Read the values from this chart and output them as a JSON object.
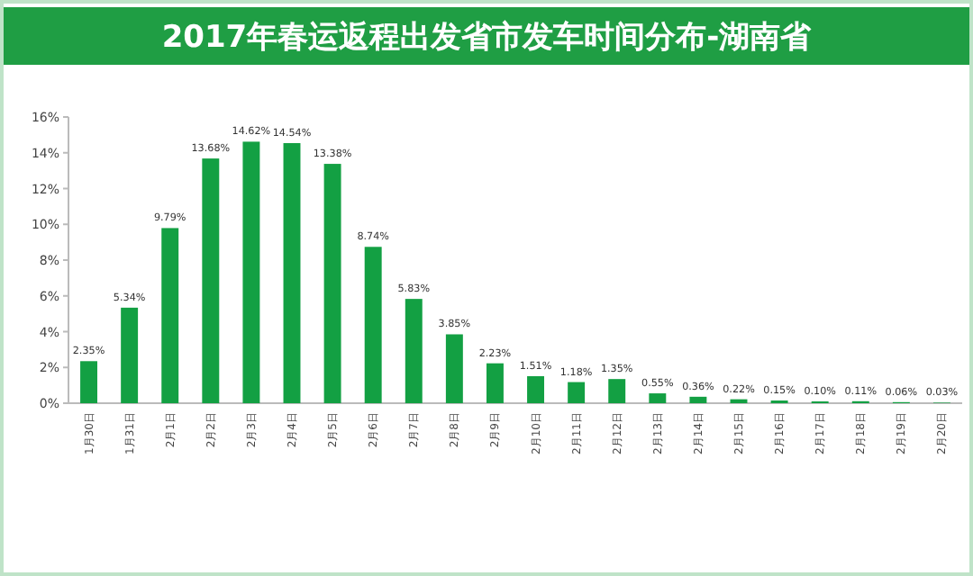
{
  "chart_data": {
    "type": "bar",
    "title": "2017年春运返程出发省市发车时间分布-湖南省",
    "categories": [
      "1月30日",
      "1月31日",
      "2月1日",
      "2月2日",
      "2月3日",
      "2月4日",
      "2月5日",
      "2月6日",
      "2月7日",
      "2月8日",
      "2月9日",
      "2月10日",
      "2月11日",
      "2月12日",
      "2月13日",
      "2月14日",
      "2月15日",
      "2月16日",
      "2月17日",
      "2月18日",
      "2月19日",
      "2月20日"
    ],
    "values": [
      2.35,
      5.34,
      9.79,
      13.68,
      14.62,
      14.54,
      13.38,
      8.74,
      5.83,
      3.85,
      2.23,
      1.51,
      1.18,
      1.35,
      0.55,
      0.36,
      0.22,
      0.15,
      0.1,
      0.11,
      0.06,
      0.03
    ],
    "value_labels": [
      "2.35%",
      "5.34%",
      "9.79%",
      "13.68%",
      "14.62%",
      "14.54%",
      "13.38%",
      "8.74%",
      "5.83%",
      "3.85%",
      "2.23%",
      "1.51%",
      "1.18%",
      "1.35%",
      "0.55%",
      "0.36%",
      "0.22%",
      "0.15%",
      "0.10%",
      "0.11%",
      "0.06%",
      "0.03%"
    ],
    "color": "#13a043",
    "ylim": [
      0,
      16
    ],
    "yticks": [
      {
        "value": 0,
        "label": "0%"
      },
      {
        "value": 2,
        "label": "2%"
      },
      {
        "value": 4,
        "label": "4%"
      },
      {
        "value": 6,
        "label": "6%"
      },
      {
        "value": 8,
        "label": "8%"
      },
      {
        "value": 10,
        "label": "10%"
      },
      {
        "value": 12,
        "label": "12%"
      },
      {
        "value": 14,
        "label": "14%"
      },
      {
        "value": 16,
        "label": "16%"
      }
    ],
    "grid": false
  }
}
